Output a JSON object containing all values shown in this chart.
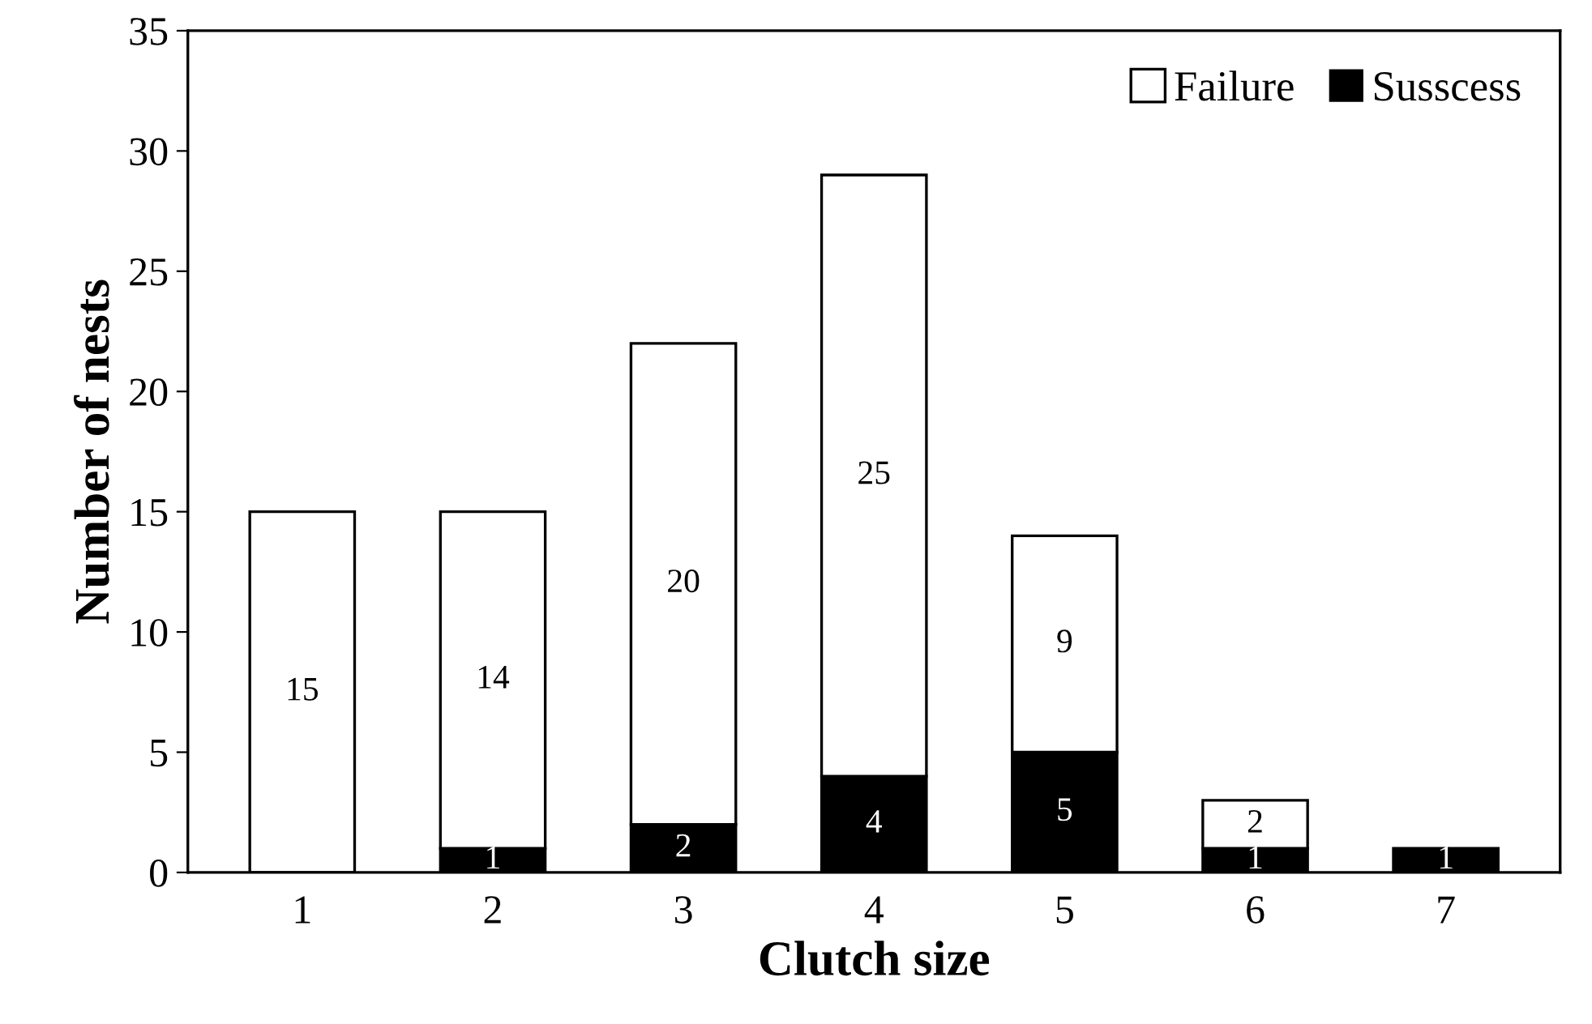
{
  "chart_data": {
    "type": "bar",
    "stacked": true,
    "xlabel": "Clutch size",
    "ylabel": "Number of nests",
    "categories": [
      "1",
      "2",
      "3",
      "4",
      "5",
      "6",
      "7"
    ],
    "series": [
      {
        "name": "Susscess",
        "color": "#000000",
        "values": [
          0,
          1,
          2,
          4,
          5,
          1,
          1
        ],
        "value_labels": [
          null,
          "1",
          "2",
          "4",
          "5",
          "1",
          "1"
        ]
      },
      {
        "name": "Failure",
        "color": "#ffffff",
        "values": [
          15,
          14,
          20,
          25,
          9,
          2,
          0
        ],
        "value_labels": [
          "15",
          "14",
          "20",
          "25",
          "9",
          "2",
          null
        ]
      }
    ],
    "ylim": [
      0,
      35
    ],
    "yticks": [
      0,
      5,
      10,
      15,
      20,
      25,
      30,
      35
    ],
    "grid": false,
    "legend": "top right"
  }
}
